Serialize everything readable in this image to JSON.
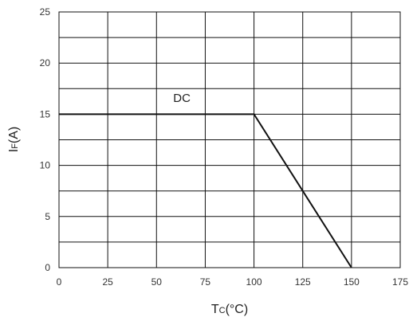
{
  "chart_data": {
    "type": "line",
    "title": "",
    "xlabel": {
      "main": "T",
      "sub": "C",
      "unit": "(°C)"
    },
    "ylabel": {
      "main": "I",
      "sub": "F",
      "unit": "(A)"
    },
    "xlim": [
      0,
      175
    ],
    "ylim": [
      0,
      25
    ],
    "x_ticks": [
      0,
      25,
      50,
      75,
      100,
      125,
      150,
      175
    ],
    "y_ticks": [
      0,
      5,
      10,
      15,
      20,
      25
    ],
    "y_minor_grid_step": 2.5,
    "grid": true,
    "line_color": "#111111",
    "grid_color": "#111111",
    "series": [
      {
        "name": "DC",
        "x": [
          0,
          100,
          150
        ],
        "y": [
          15,
          15,
          0
        ]
      }
    ],
    "annotations": [
      {
        "text": "DC",
        "x": 63,
        "y": 16.2
      }
    ]
  }
}
